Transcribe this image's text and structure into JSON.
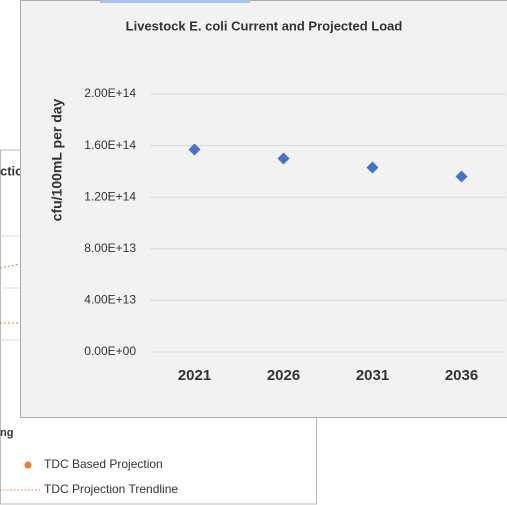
{
  "chart_data": [
    {
      "type": "scatter",
      "title": "Livestock  E. coli Current and Projected Load",
      "y_label": "cfu/100mL per day",
      "categories": [
        "2021",
        "2026",
        "2031",
        "2036"
      ],
      "values": [
        157000000000000,
        150000000000000,
        143000000000000,
        136000000000000
      ],
      "color": "#4472c4",
      "ylim": [
        0,
        200000000000000
      ],
      "yticks": [
        {
          "value": 0,
          "label": "0.00E+00"
        },
        {
          "value": 40000000000000,
          "label": "4.00E+13"
        },
        {
          "value": 80000000000000,
          "label": "8.00E+13"
        },
        {
          "value": 120000000000000,
          "label": "1.20E+14"
        },
        {
          "value": 160000000000000,
          "label": "1.60E+14"
        },
        {
          "value": 200000000000000,
          "label": "2.00E+14"
        }
      ],
      "grid": true
    },
    {
      "type": "line",
      "title": "ctio",
      "legend_title": "ng",
      "series": [
        {
          "name": "TDC Based Projection",
          "color": "#ed7d31"
        },
        {
          "name": "TDC Projection Trendline",
          "color": "#ed7d31"
        }
      ]
    }
  ]
}
